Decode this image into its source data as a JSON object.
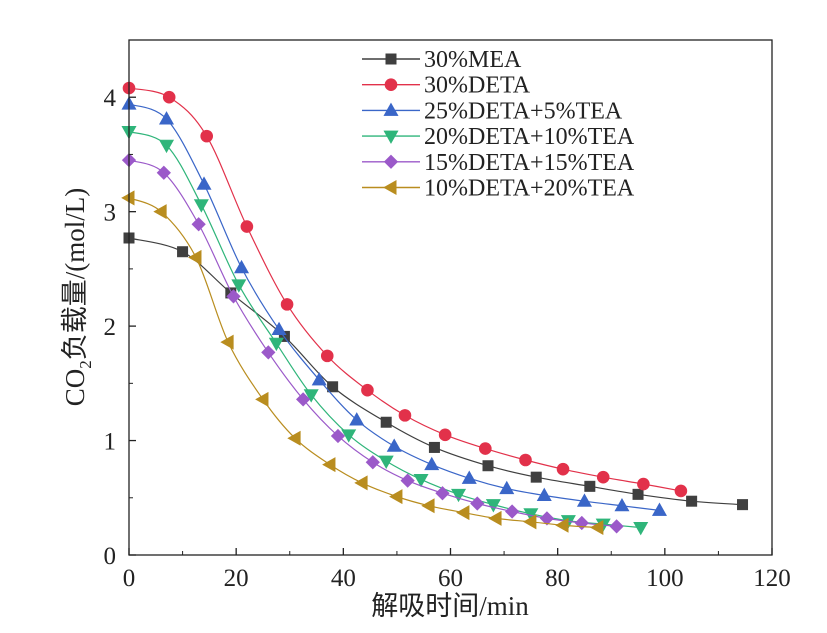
{
  "chart_data": {
    "type": "line",
    "xlabel": "解吸时间/min",
    "ylabel": "CO2负载量/(mol/L)",
    "ylabel_parts": {
      "pre": "CO",
      "sub": "2",
      "post": "负载量/(mol/L)"
    },
    "xlim": [
      0,
      120
    ],
    "ylim": [
      0,
      4.5
    ],
    "x_ticks": [
      0,
      20,
      40,
      60,
      80,
      100,
      120
    ],
    "y_ticks": [
      0,
      1,
      2,
      3,
      4
    ],
    "x_tick_labels": [
      "0",
      "20",
      "40",
      "60",
      "80",
      "100",
      "120"
    ],
    "y_tick_labels": [
      "0",
      "1",
      "2",
      "3",
      "4"
    ],
    "grid": false,
    "legend_position": "top-right",
    "series": [
      {
        "name": "30%MEA",
        "color": "#3f3f3f",
        "marker": "square",
        "x": [
          0,
          10,
          19,
          29,
          38,
          48,
          57,
          67,
          76,
          86,
          95,
          105,
          114.5
        ],
        "y": [
          2.77,
          2.65,
          2.29,
          1.91,
          1.47,
          1.16,
          0.94,
          0.78,
          0.68,
          0.6,
          0.53,
          0.47,
          0.44
        ]
      },
      {
        "name": "30%DETA",
        "color": "#e2314a",
        "marker": "circle",
        "x": [
          0,
          7.5,
          14.5,
          22,
          29.5,
          37,
          44.5,
          51.5,
          59,
          66.5,
          74,
          81,
          88.5,
          96,
          103
        ],
        "y": [
          4.08,
          4.0,
          3.66,
          2.87,
          2.19,
          1.74,
          1.44,
          1.22,
          1.05,
          0.93,
          0.83,
          0.75,
          0.68,
          0.62,
          0.56
        ]
      },
      {
        "name": "25%DETA+5%TEA",
        "color": "#3a66c8",
        "marker": "triangle-up",
        "x": [
          0,
          7,
          14,
          21,
          28,
          35.5,
          42.5,
          49.5,
          56.5,
          63.5,
          70.5,
          77.5,
          85,
          92,
          99
        ],
        "y": [
          3.94,
          3.81,
          3.24,
          2.51,
          1.97,
          1.53,
          1.18,
          0.95,
          0.79,
          0.67,
          0.58,
          0.52,
          0.47,
          0.43,
          0.39
        ]
      },
      {
        "name": "20%DETA+10%TEA",
        "color": "#2fb57a",
        "marker": "triangle-down",
        "x": [
          0,
          7,
          13.5,
          20.5,
          27.5,
          34,
          41,
          48,
          54.5,
          61.5,
          68,
          75,
          82,
          88.5,
          95.5
        ],
        "y": [
          3.7,
          3.58,
          3.06,
          2.36,
          1.85,
          1.4,
          1.05,
          0.82,
          0.66,
          0.53,
          0.44,
          0.36,
          0.3,
          0.27,
          0.24
        ]
      },
      {
        "name": "15%DETA+15%TEA",
        "color": "#9b59c9",
        "marker": "diamond",
        "x": [
          0,
          6.5,
          13,
          19.5,
          26,
          32.5,
          39,
          45.5,
          52,
          58.5,
          65,
          71.5,
          78,
          84.5,
          91
        ],
        "y": [
          3.45,
          3.34,
          2.89,
          2.26,
          1.77,
          1.36,
          1.04,
          0.81,
          0.65,
          0.54,
          0.45,
          0.38,
          0.32,
          0.28,
          0.25
        ]
      },
      {
        "name": "10%DETA+20%TEA",
        "color": "#b98d1f",
        "marker": "triangle-left",
        "x": [
          0,
          6,
          12.5,
          18.5,
          25,
          31,
          37.5,
          43.5,
          50,
          56,
          62.5,
          68.5,
          75,
          81,
          87.5
        ],
        "y": [
          3.12,
          3.0,
          2.6,
          1.86,
          1.36,
          1.02,
          0.79,
          0.63,
          0.51,
          0.43,
          0.37,
          0.32,
          0.29,
          0.26,
          0.24
        ]
      }
    ]
  }
}
